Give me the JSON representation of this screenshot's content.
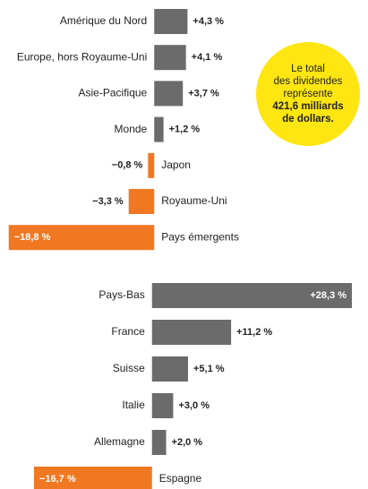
{
  "chart_data": [
    {
      "type": "bar",
      "orientation": "horizontal",
      "categories": [
        "Amérique du Nord",
        "Europe, hors Royaume-Uni",
        "Asie-Pacifique",
        "Monde",
        "Japon",
        "Royaume-Uni",
        "Pays émergents"
      ],
      "values": [
        4.3,
        4.1,
        3.7,
        1.2,
        -0.8,
        -3.3,
        -18.8
      ],
      "value_labels": [
        "+4,3 %",
        "+4,1 %",
        "+3,7 %",
        "+1,2 %",
        "−0,8 %",
        "−3,3 %",
        "−18,8 %"
      ],
      "colors": [
        "#6b6b6b",
        "#6b6b6b",
        "#6b6b6b",
        "#6b6b6b",
        "#f07822",
        "#f07822",
        "#f07822"
      ],
      "xlim": [
        -19,
        26
      ],
      "annotation": [
        "Le total",
        "des dividendes",
        "représente",
        "421,6 milliards",
        "de dollars."
      ]
    },
    {
      "type": "bar",
      "orientation": "horizontal",
      "categories": [
        "Pays-Bas",
        "France",
        "Suisse",
        "Italie",
        "Allemagne",
        "Espagne"
      ],
      "values": [
        28.3,
        11.2,
        5.1,
        3.0,
        2.0,
        -16.7
      ],
      "value_labels": [
        "+28,3 %",
        "+11,2 %",
        "+5,1 %",
        "+3,0 %",
        "+2,0 %",
        "−16,7 %"
      ],
      "colors": [
        "#6b6b6b",
        "#6b6b6b",
        "#6b6b6b",
        "#6b6b6b",
        "#6b6b6b",
        "#f07822"
      ],
      "xlim": [
        -20.5,
        28.8
      ]
    }
  ]
}
